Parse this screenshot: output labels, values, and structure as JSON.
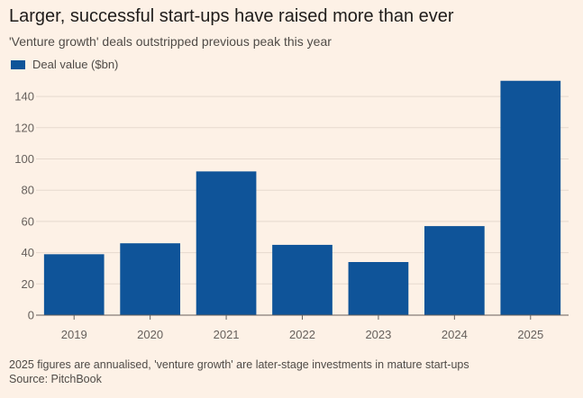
{
  "colors": {
    "background": "#fdf1e6",
    "bar": "#0f5499",
    "gridline": "#e6d9ce",
    "baseline": "#66605c",
    "tick_text": "#66605c"
  },
  "header": {
    "title": "Larger, successful start-ups have raised more than ever",
    "subtitle": "'Venture growth' deals outstripped previous peak this year"
  },
  "footer": {
    "note": "2025 figures are annualised, 'venture growth' are later-stage investments in mature start-ups",
    "source": "Source: PitchBook"
  },
  "chart_data": {
    "type": "bar",
    "title": "Larger, successful start-ups have raised more than ever",
    "subtitle": "'Venture growth' deals outstripped previous peak this year",
    "categories": [
      "2019",
      "2020",
      "2021",
      "2022",
      "2023",
      "2024",
      "2025"
    ],
    "series": [
      {
        "name": "Deal value ($bn)",
        "values": [
          39,
          46,
          92,
          45,
          34,
          57,
          150
        ]
      }
    ],
    "ylim": [
      0,
      150
    ],
    "yticks": [
      0,
      20,
      40,
      60,
      80,
      100,
      120,
      140
    ],
    "grid": true,
    "legend": "top-left"
  }
}
